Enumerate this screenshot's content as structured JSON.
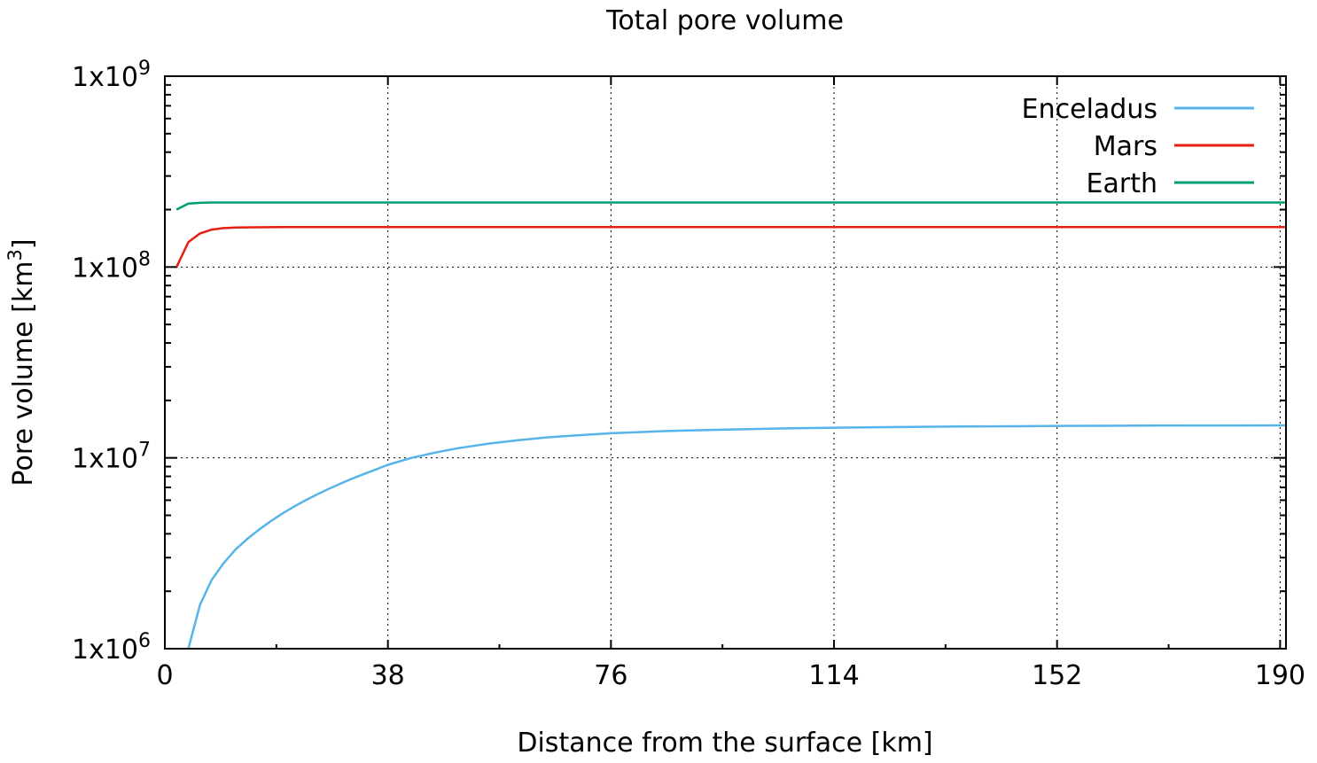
{
  "chart_data": {
    "type": "line",
    "title": "Total pore volume",
    "xlabel": "Distance from the surface [km]",
    "ylabel": {
      "main": "Pore volume [km",
      "sup": "3",
      "tail": "]"
    },
    "xlim": [
      0,
      191
    ],
    "ylim": [
      1000000,
      1000000000
    ],
    "yscale": "log",
    "grid": true,
    "legend_position": "top-right",
    "x_ticks": [
      {
        "value": 0,
        "label": "0"
      },
      {
        "value": 38,
        "label": "38"
      },
      {
        "value": 76,
        "label": "76"
      },
      {
        "value": 114,
        "label": "114"
      },
      {
        "value": 152,
        "label": "152"
      },
      {
        "value": 190,
        "label": "190"
      }
    ],
    "y_ticks": [
      {
        "value": 1000000,
        "base": "1x10",
        "exp": "6"
      },
      {
        "value": 10000000,
        "base": "1x10",
        "exp": "7"
      },
      {
        "value": 100000000,
        "base": "1x10",
        "exp": "8"
      },
      {
        "value": 1000000000,
        "base": "1x10",
        "exp": "9"
      }
    ],
    "series": [
      {
        "name": "Enceladus",
        "color": "#56b4e9",
        "x": [
          4,
          6,
          8,
          10,
          12,
          14,
          16,
          18,
          20,
          22,
          24,
          26,
          28,
          30,
          32,
          34,
          36,
          38,
          42,
          46,
          50,
          55,
          60,
          65,
          70,
          76,
          85,
          95,
          105,
          114,
          125,
          135,
          145,
          152,
          165,
          180,
          191
        ],
        "y": [
          1000000,
          1700000,
          2300000,
          2800000,
          3300000,
          3750000,
          4200000,
          4650000,
          5100000,
          5550000,
          6000000,
          6450000,
          6900000,
          7350000,
          7800000,
          8250000,
          8700000,
          9200000,
          10000000,
          10650000,
          11250000,
          11850000,
          12350000,
          12800000,
          13100000,
          13450000,
          13800000,
          14050000,
          14250000,
          14400000,
          14500000,
          14600000,
          14650000,
          14700000,
          14750000,
          14780000,
          14800000
        ]
      },
      {
        "name": "Mars",
        "color": "#e51e10",
        "x": [
          2,
          4,
          6,
          8,
          10,
          12,
          15,
          20,
          30,
          50,
          76,
          114,
          152,
          191
        ],
        "y": [
          100000000,
          135000000,
          150000000,
          157000000,
          160000000,
          161000000,
          161500000,
          162000000,
          162000000,
          162000000,
          162000000,
          162000000,
          162000000,
          162000000
        ]
      },
      {
        "name": "Earth",
        "color": "#009e73",
        "x": [
          2,
          4,
          6,
          8,
          12,
          20,
          38,
          76,
          114,
          152,
          191
        ],
        "y": [
          200000000,
          215000000,
          217000000,
          218000000,
          218000000,
          218000000,
          218000000,
          218000000,
          218000000,
          218000000,
          218000000
        ]
      }
    ]
  }
}
